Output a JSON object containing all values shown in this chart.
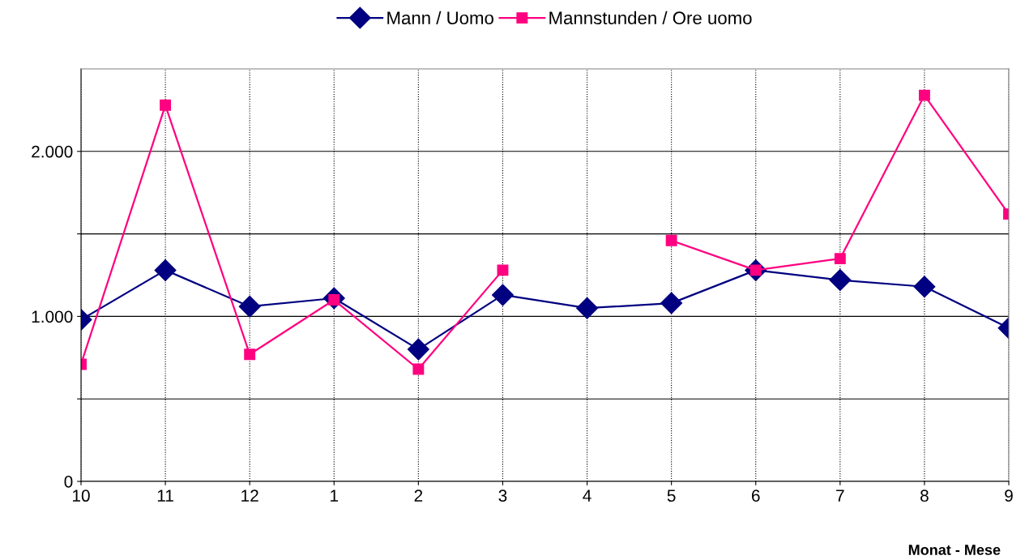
{
  "chart_data": {
    "type": "line",
    "xlabel": "Monat - Mese",
    "categories": [
      "10",
      "11",
      "12",
      "1",
      "2",
      "3",
      "4",
      "5",
      "6",
      "7",
      "8",
      "9"
    ],
    "series": [
      {
        "name": "Mann / Uomo",
        "color": "#000080",
        "marker": "diamond",
        "values": [
          980,
          1280,
          1060,
          1110,
          800,
          1130,
          1050,
          1080,
          1280,
          1220,
          1180,
          930
        ]
      },
      {
        "name": "Mannstunden / Ore uomo",
        "color": "#ff0080",
        "marker": "square",
        "values": [
          710,
          2280,
          770,
          1100,
          680,
          1280,
          null,
          1460,
          1280,
          1350,
          2340,
          1620
        ]
      }
    ],
    "ylim": [
      0,
      2500
    ],
    "yticks": [
      0,
      {
        "value": 500,
        "label": null
      },
      {
        "value": 1000,
        "label": "1.000"
      },
      {
        "value": 1500,
        "label": null
      },
      {
        "value": 2000,
        "label": "2.000"
      }
    ],
    "grid": true,
    "legend": "top",
    "line_style": "solid"
  }
}
